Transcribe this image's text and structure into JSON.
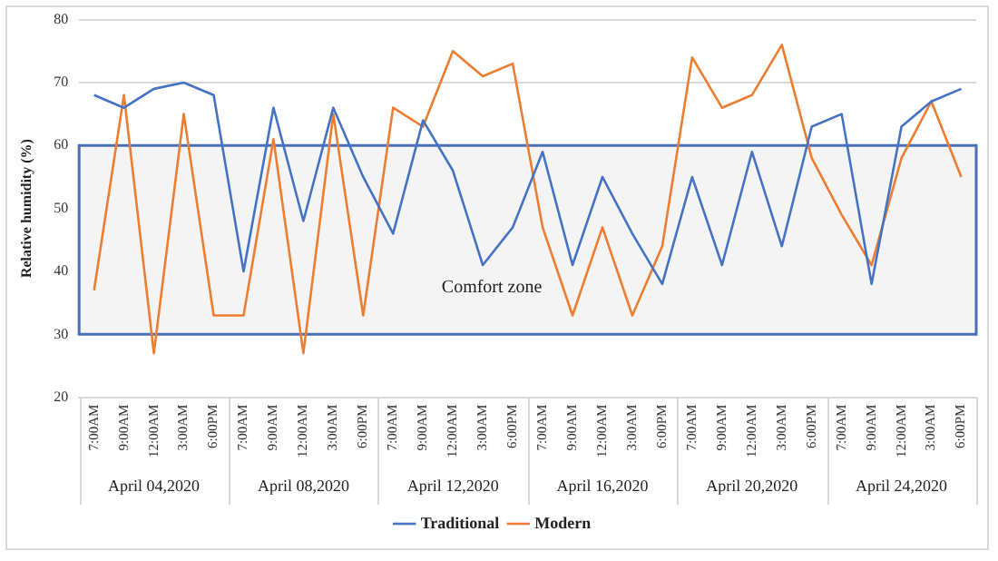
{
  "chart_data": {
    "type": "line",
    "ylabel": "Relative humidity (%)",
    "categories": [
      "7:00AM",
      "9:00AM",
      "12:00AM",
      "3:00AM",
      "6:00PM",
      "7:00AM",
      "9:00AM",
      "12:00AM",
      "3:00AM",
      "6:00PM",
      "7:00AM",
      "9:00AM",
      "12:00AM",
      "3:00AM",
      "6:00PM",
      "7:00AM",
      "9:00AM",
      "12:00AM",
      "3:00AM",
      "6:00PM",
      "7:00AM",
      "9:00AM",
      "12:00AM",
      "3:00AM",
      "6:00PM",
      "7:00AM",
      "9:00AM",
      "12:00AM",
      "3:00AM",
      "6:00PM"
    ],
    "annotations": [
      "April 04,2020",
      "April 08,2020",
      "April 12,2020",
      "April 16,2020",
      "April 20,2020",
      "April 24,2020"
    ],
    "series": [
      {
        "name": "Traditional",
        "color": "#4472c4",
        "values": [
          68,
          66,
          69,
          70,
          68,
          40,
          66,
          48,
          66,
          55,
          46,
          64,
          56,
          41,
          47,
          59,
          41,
          55,
          46,
          38,
          55,
          41,
          59,
          44,
          63,
          65,
          38,
          63,
          67,
          69
        ]
      },
      {
        "name": "Modern",
        "color": "#ed7d31",
        "values": [
          37,
          68,
          27,
          65,
          33,
          33,
          61,
          27,
          65,
          33,
          66,
          63,
          75,
          71,
          73,
          47,
          33,
          47,
          33,
          44,
          74,
          66,
          68,
          76,
          58,
          49,
          41,
          58,
          67,
          55
        ]
      }
    ],
    "bands": [
      {
        "axis": "y",
        "from": 30,
        "to": 60,
        "label": "Comfort zone",
        "color": "#f4f4f4"
      }
    ],
    "ylim": [
      20,
      80
    ],
    "yticks": [
      20,
      30,
      40,
      50,
      60,
      70,
      80
    ],
    "grid": "y",
    "legend": "bottom",
    "marker": "none",
    "line_style": "solid"
  }
}
